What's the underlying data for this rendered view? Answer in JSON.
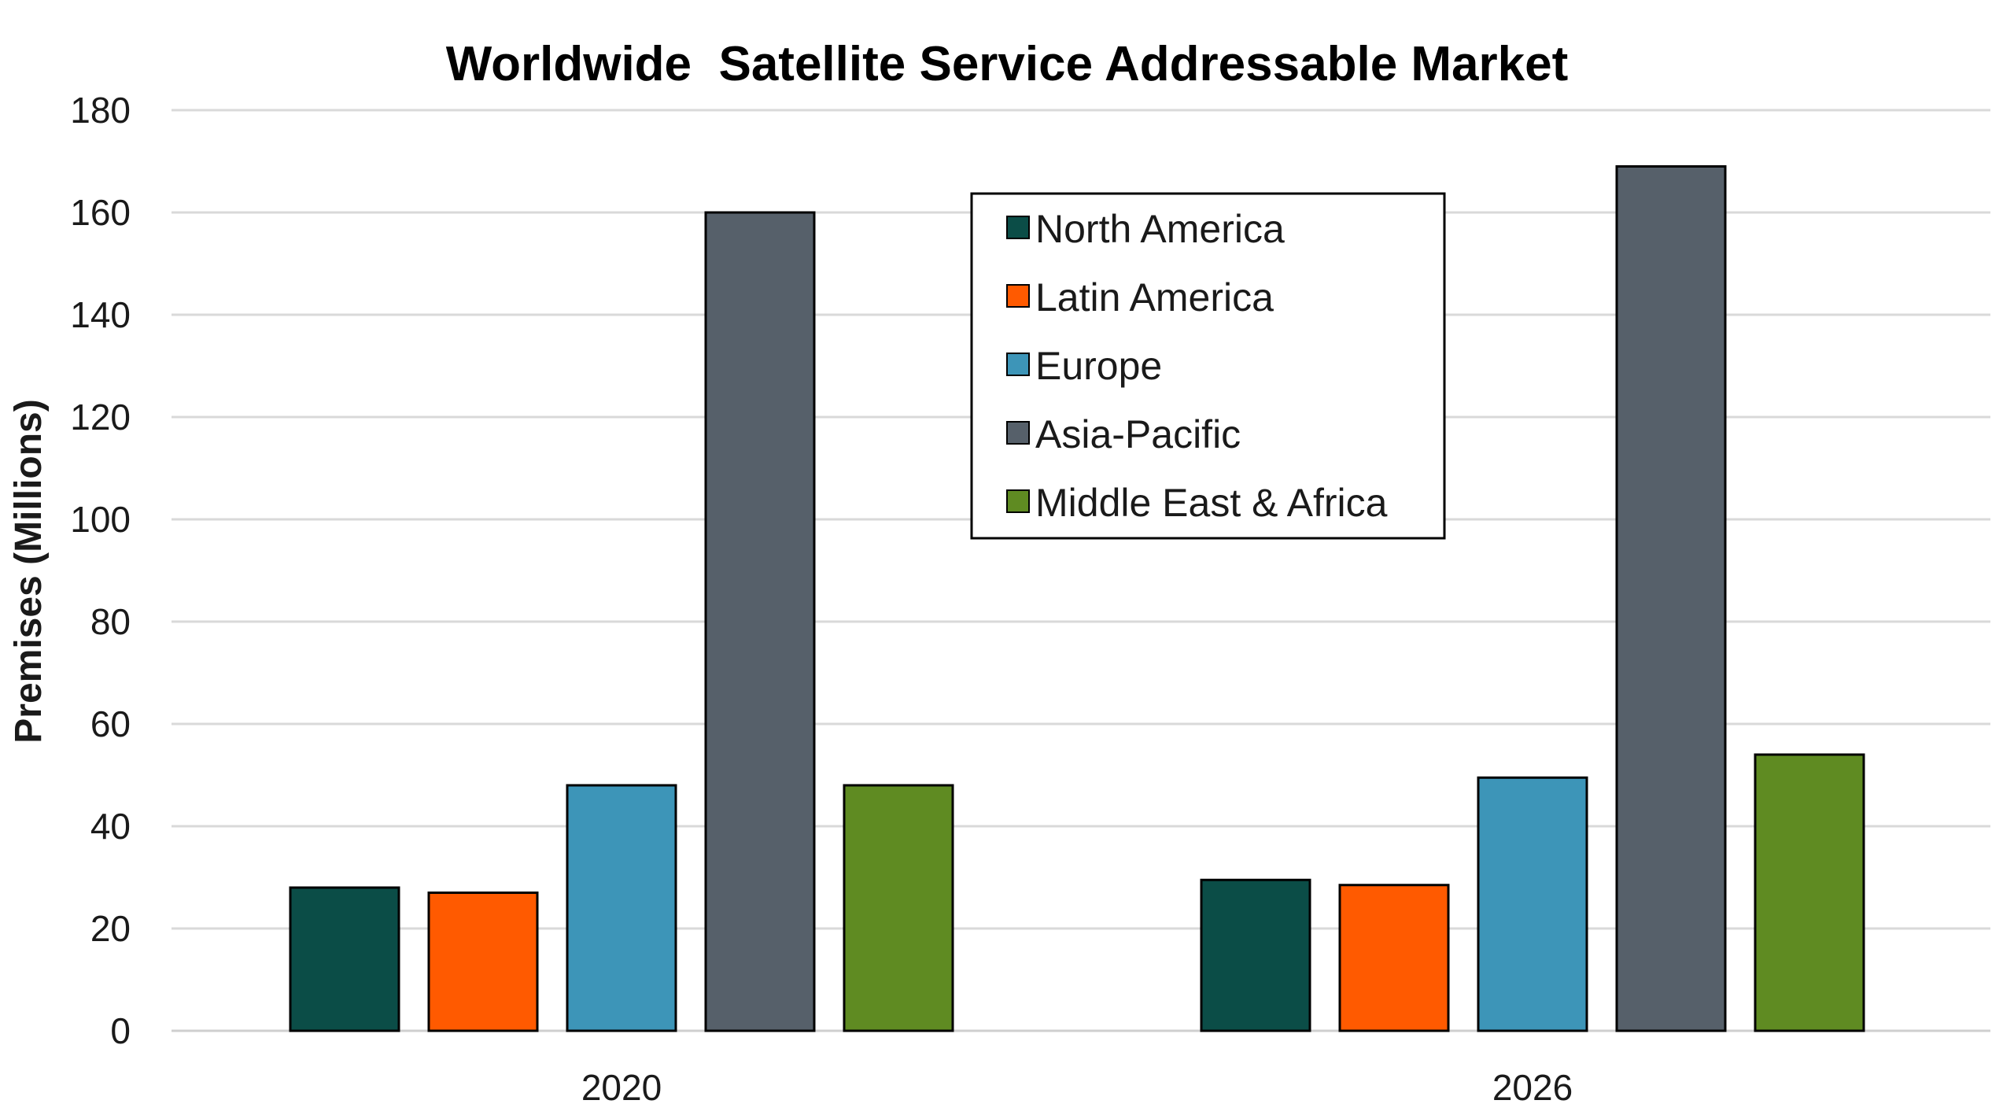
{
  "chart_data": {
    "type": "bar",
    "title": "Worldwide  Satellite Service Addressable Market",
    "xlabel": "",
    "ylabel": "Premises (Millions)",
    "ylim": [
      0,
      180
    ],
    "yticks": [
      0,
      20,
      40,
      60,
      80,
      100,
      120,
      140,
      160,
      180
    ],
    "grid": true,
    "legend_position": "top-center",
    "categories": [
      "2020",
      "2026"
    ],
    "series": [
      {
        "name": "North America",
        "color": "#0b4d47",
        "values": [
          28,
          29.5
        ]
      },
      {
        "name": "Latin America",
        "color": "#ff5a00",
        "values": [
          27,
          28.5
        ]
      },
      {
        "name": "Europe",
        "color": "#3d95b8",
        "values": [
          48,
          49.5
        ]
      },
      {
        "name": "Asia-Pacific",
        "color": "#56606a",
        "values": [
          160,
          169
        ]
      },
      {
        "name": "Middle East & Africa",
        "color": "#5f8b22",
        "values": [
          48,
          54
        ]
      }
    ]
  }
}
